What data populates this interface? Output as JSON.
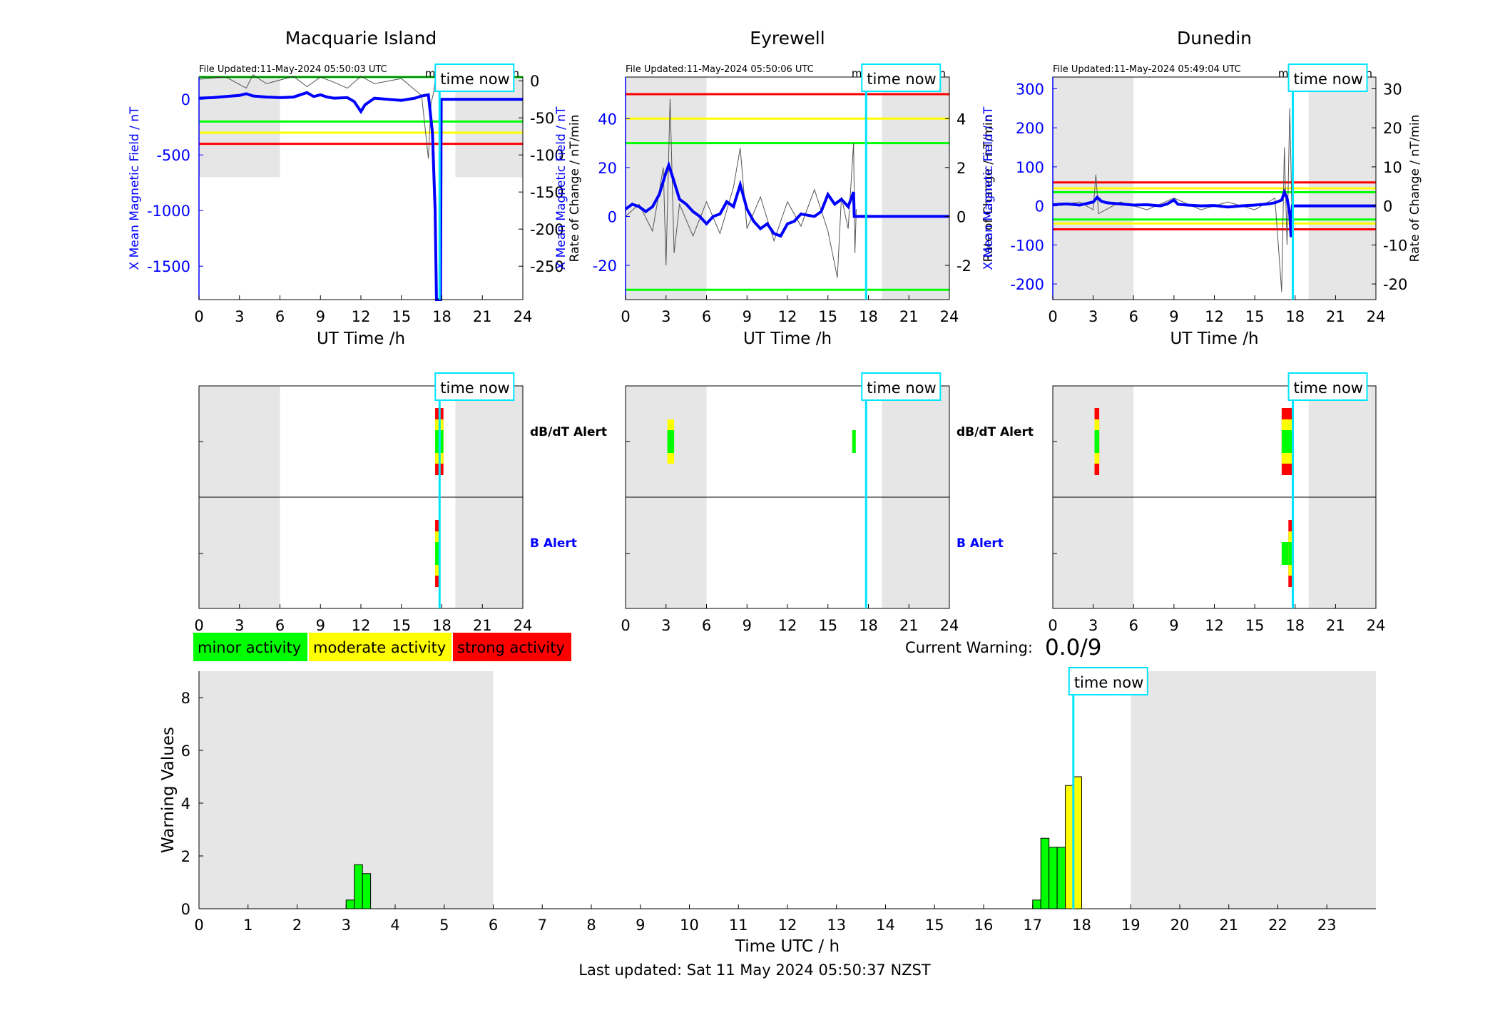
{
  "footer": {
    "last_updated": "Last updated: Sat 11 May 2024 05:50:37 NZST"
  },
  "current_warning": {
    "label": "Current Warning:",
    "value": "0.0/9"
  },
  "legend": [
    {
      "label": "minor activity",
      "color": "#00ff00"
    },
    {
      "label": "moderate activity",
      "color": "#ffff00"
    },
    {
      "label": "strong activity",
      "color": "#ff0000"
    }
  ],
  "alert_labels": {
    "dbdt": "dB/dT Alert",
    "b": "B Alert"
  },
  "colors": {
    "blue": "#0000ff",
    "cyan": "#00e5ff",
    "shade": "#e6e6e6",
    "green": "#00ff00",
    "yellow": "#ffff00",
    "red": "#ff0000"
  },
  "chart_data": [
    {
      "id": "macquarie",
      "type": "line",
      "title": "Macquarie Island",
      "file_updated": "File Updated:11-May-2024 05:50:03 UTC",
      "resolution": "minute resolution",
      "time_now_label": "time now",
      "time_now": 17.83,
      "xlabel": "UT Time /h",
      "ylabel_left": "X Mean Magnetic Field / nT",
      "ylabel_right": "Rate of Change / nT/min",
      "xlim": [
        0,
        24
      ],
      "xticks": [
        0,
        3,
        6,
        9,
        12,
        15,
        18,
        21,
        24
      ],
      "ylim_left": [
        -1800,
        200
      ],
      "yticks_left": [
        -1500,
        -1000,
        -500,
        0
      ],
      "ylim_right": [
        -295,
        5
      ],
      "yticks_right": [
        -250,
        -200,
        -150,
        -100,
        -50,
        0
      ],
      "thresholds_left": [
        {
          "value": 200,
          "color": "green"
        },
        {
          "value": -200,
          "color": "green"
        },
        {
          "value": -300,
          "color": "yellow"
        },
        {
          "value": -400,
          "color": "red"
        }
      ],
      "night_shading": [
        [
          0,
          6
        ],
        [
          19,
          24
        ]
      ],
      "field_series": [
        [
          0,
          10
        ],
        [
          1,
          15
        ],
        [
          2,
          25
        ],
        [
          3,
          35
        ],
        [
          3.5,
          50
        ],
        [
          4,
          30
        ],
        [
          5,
          20
        ],
        [
          6,
          15
        ],
        [
          7,
          20
        ],
        [
          7.5,
          40
        ],
        [
          8,
          60
        ],
        [
          8.5,
          25
        ],
        [
          9,
          40
        ],
        [
          9.5,
          20
        ],
        [
          10,
          10
        ],
        [
          11,
          15
        ],
        [
          11.5,
          -20
        ],
        [
          12,
          -110
        ],
        [
          12.3,
          -50
        ],
        [
          13,
          10
        ],
        [
          14,
          0
        ],
        [
          15,
          -10
        ],
        [
          16,
          10
        ],
        [
          16.5,
          30
        ],
        [
          17,
          40
        ],
        [
          17.3,
          -300
        ],
        [
          17.5,
          -1000
        ],
        [
          17.6,
          -1800
        ],
        [
          17.9,
          -1800
        ],
        [
          17.95,
          0
        ],
        [
          24,
          0
        ]
      ],
      "rate_series": [
        [
          0,
          2
        ],
        [
          2,
          5
        ],
        [
          3.5,
          -10
        ],
        [
          4,
          8
        ],
        [
          5,
          -4
        ],
        [
          7,
          6
        ],
        [
          8,
          -8
        ],
        [
          9,
          5
        ],
        [
          10,
          -2
        ],
        [
          11,
          -10
        ],
        [
          12,
          6
        ],
        [
          13,
          -4
        ],
        [
          15,
          3
        ],
        [
          16.5,
          -20
        ],
        [
          17,
          -105
        ],
        [
          17.2,
          -30
        ],
        [
          17.4,
          -15
        ],
        [
          17.5,
          0
        ]
      ]
    },
    {
      "id": "eyrewell",
      "type": "line",
      "title": "Eyrewell",
      "file_updated": "File Updated:11-May-2024 05:50:06 UTC",
      "resolution": "minute resolution",
      "time_now_label": "time now",
      "time_now": 17.83,
      "xlabel": "UT Time /h",
      "ylabel_left": "X Mean Magnetic Field / nT",
      "ylabel_right": "Rate of Change / nT/min",
      "xlim": [
        0,
        24
      ],
      "xticks": [
        0,
        3,
        6,
        9,
        12,
        15,
        18,
        21,
        24
      ],
      "ylim_left": [
        -34,
        57
      ],
      "yticks_left": [
        -20,
        0,
        20,
        40
      ],
      "ylim_right": [
        -3.4,
        5.7
      ],
      "yticks_right": [
        -2,
        0,
        2,
        4
      ],
      "thresholds_left": [
        {
          "value": 50,
          "color": "red"
        },
        {
          "value": 40,
          "color": "yellow"
        },
        {
          "value": 30,
          "color": "green"
        },
        {
          "value": -30,
          "color": "green"
        }
      ],
      "night_shading": [
        [
          0,
          6
        ],
        [
          19,
          24
        ]
      ],
      "field_series": [
        [
          0,
          3
        ],
        [
          0.5,
          5
        ],
        [
          1,
          4
        ],
        [
          1.5,
          2
        ],
        [
          2,
          4
        ],
        [
          2.5,
          9
        ],
        [
          3,
          18
        ],
        [
          3.2,
          21
        ],
        [
          3.5,
          16
        ],
        [
          4,
          7
        ],
        [
          4.5,
          5
        ],
        [
          5,
          2
        ],
        [
          5.5,
          0
        ],
        [
          6,
          -3
        ],
        [
          6.5,
          0
        ],
        [
          7,
          1
        ],
        [
          7.5,
          6
        ],
        [
          8,
          4
        ],
        [
          8.5,
          13
        ],
        [
          9,
          3
        ],
        [
          9.5,
          -2
        ],
        [
          10,
          -5
        ],
        [
          10.5,
          -3
        ],
        [
          11,
          -7
        ],
        [
          11.5,
          -8
        ],
        [
          12,
          -3
        ],
        [
          12.5,
          -2
        ],
        [
          13,
          1
        ],
        [
          14,
          0
        ],
        [
          14.5,
          2
        ],
        [
          15,
          9
        ],
        [
          15.5,
          5
        ],
        [
          16,
          7
        ],
        [
          16.5,
          4
        ],
        [
          16.9,
          10
        ],
        [
          16.95,
          0
        ],
        [
          24,
          0
        ]
      ],
      "rate_series": [
        [
          0,
          0
        ],
        [
          1,
          0.5
        ],
        [
          2,
          -0.6
        ],
        [
          2.8,
          2
        ],
        [
          3,
          -2
        ],
        [
          3.3,
          4.8
        ],
        [
          3.6,
          -1.5
        ],
        [
          4,
          0.5
        ],
        [
          5,
          -0.8
        ],
        [
          6,
          0.6
        ],
        [
          7,
          -0.7
        ],
        [
          8,
          1.2
        ],
        [
          8.5,
          2.8
        ],
        [
          9,
          -0.5
        ],
        [
          10,
          0.8
        ],
        [
          11,
          -1
        ],
        [
          12,
          0.6
        ],
        [
          13,
          -0.4
        ],
        [
          14,
          1.1
        ],
        [
          15,
          -0.6
        ],
        [
          15.7,
          -2.5
        ],
        [
          16,
          0.8
        ],
        [
          16.5,
          -0.5
        ],
        [
          16.9,
          3
        ],
        [
          17,
          -1.5
        ],
        [
          17.1,
          0.3
        ]
      ]
    },
    {
      "id": "dunedin",
      "type": "line",
      "title": "Dunedin",
      "file_updated": "File Updated:11-May-2024 05:49:04 UTC",
      "resolution": "minute resolution",
      "time_now_label": "time now",
      "time_now": 17.83,
      "xlabel": "UT Time /h",
      "ylabel_left": "X Mean Magnetic Field / nT",
      "ylabel_right": "Rate of Change / nT/min",
      "xlim": [
        0,
        24
      ],
      "xticks": [
        0,
        3,
        6,
        9,
        12,
        15,
        18,
        21,
        24
      ],
      "ylim_left": [
        -240,
        330
      ],
      "yticks_left": [
        -200,
        -100,
        0,
        100,
        200,
        300
      ],
      "ylim_right": [
        -24,
        33
      ],
      "yticks_right": [
        -20,
        -10,
        0,
        10,
        20,
        30
      ],
      "thresholds_left": [
        {
          "value": 60,
          "color": "red"
        },
        {
          "value": 45,
          "color": "yellow"
        },
        {
          "value": 35,
          "color": "green"
        },
        {
          "value": -35,
          "color": "green"
        },
        {
          "value": -45,
          "color": "yellow"
        },
        {
          "value": -60,
          "color": "red"
        }
      ],
      "night_shading": [
        [
          0,
          6
        ],
        [
          19,
          24
        ]
      ],
      "field_series": [
        [
          0,
          3
        ],
        [
          1,
          5
        ],
        [
          2,
          2
        ],
        [
          3,
          10
        ],
        [
          3.3,
          22
        ],
        [
          3.6,
          12
        ],
        [
          4,
          8
        ],
        [
          5,
          5
        ],
        [
          6,
          2
        ],
        [
          7,
          3
        ],
        [
          8,
          0
        ],
        [
          8.5,
          5
        ],
        [
          9,
          15
        ],
        [
          9.3,
          4
        ],
        [
          10,
          2
        ],
        [
          11,
          0
        ],
        [
          12,
          1
        ],
        [
          13,
          -3
        ],
        [
          14,
          0
        ],
        [
          15,
          2
        ],
        [
          16,
          5
        ],
        [
          16.5,
          8
        ],
        [
          17,
          15
        ],
        [
          17.2,
          35
        ],
        [
          17.4,
          20
        ],
        [
          17.6,
          -20
        ],
        [
          17.7,
          -80
        ],
        [
          17.75,
          -40
        ],
        [
          17.8,
          0
        ],
        [
          24,
          0
        ]
      ],
      "rate_series": [
        [
          0,
          0
        ],
        [
          2,
          1
        ],
        [
          3,
          -1
        ],
        [
          3.2,
          8
        ],
        [
          3.4,
          -2
        ],
        [
          5,
          1
        ],
        [
          7,
          -1
        ],
        [
          9,
          2
        ],
        [
          11,
          -1
        ],
        [
          13,
          1
        ],
        [
          15,
          -1
        ],
        [
          16.5,
          2
        ],
        [
          17,
          -22
        ],
        [
          17.2,
          15
        ],
        [
          17.4,
          -10
        ],
        [
          17.6,
          25
        ],
        [
          17.8,
          -8
        ]
      ]
    },
    {
      "id": "macquarie-alerts",
      "type": "bar",
      "xticks": [
        0,
        3,
        6,
        9,
        12,
        15,
        18,
        21,
        24
      ],
      "xlim": [
        0,
        24
      ],
      "time_now": 17.83,
      "time_now_label": "time now",
      "night_shading": [
        [
          0,
          6
        ],
        [
          19,
          24
        ]
      ],
      "dbdt": [
        {
          "x": 17.5,
          "w": 0.3,
          "level": 3
        },
        {
          "x": 17.85,
          "w": 0.15,
          "level": 3
        }
      ],
      "b": [
        {
          "x": 17.5,
          "w": 0.35,
          "level": 3
        }
      ]
    },
    {
      "id": "eyrewell-alerts",
      "type": "bar",
      "xticks": [
        0,
        3,
        6,
        9,
        12,
        15,
        18,
        21,
        24
      ],
      "xlim": [
        0,
        24
      ],
      "time_now": 17.83,
      "time_now_label": "time now",
      "night_shading": [
        [
          0,
          6
        ],
        [
          19,
          24
        ]
      ],
      "dbdt": [
        {
          "x": 3.1,
          "w": 0.5,
          "level": 2
        },
        {
          "x": 16.8,
          "w": 0.25,
          "level": 1
        }
      ],
      "b": []
    },
    {
      "id": "dunedin-alerts",
      "type": "bar",
      "xticks": [
        0,
        3,
        6,
        9,
        12,
        15,
        18,
        21,
        24
      ],
      "xlim": [
        0,
        24
      ],
      "time_now": 17.83,
      "time_now_label": "time now",
      "night_shading": [
        [
          0,
          6
        ],
        [
          19,
          24
        ]
      ],
      "dbdt": [
        {
          "x": 3.1,
          "w": 0.35,
          "level": 3
        },
        {
          "x": 17.0,
          "w": 0.85,
          "level": 3
        }
      ],
      "b": [
        {
          "x": 17.0,
          "w": 0.5,
          "level": 1
        },
        {
          "x": 17.5,
          "w": 0.4,
          "level": 3
        }
      ]
    },
    {
      "id": "warning-bars",
      "type": "bar",
      "xlabel": "Time UTC / h",
      "ylabel": "Warning Values",
      "xlim": [
        0,
        24
      ],
      "xticks": [
        0,
        1,
        2,
        3,
        4,
        5,
        6,
        7,
        8,
        9,
        10,
        11,
        12,
        13,
        14,
        15,
        16,
        17,
        18,
        19,
        20,
        21,
        22,
        23
      ],
      "ylim": [
        0,
        9
      ],
      "yticks": [
        0,
        2,
        4,
        6,
        8
      ],
      "time_now": 17.83,
      "time_now_label": "time now",
      "night_shading": [
        [
          0,
          6
        ],
        [
          19,
          24
        ]
      ],
      "bar_width": 0.1667,
      "bars": [
        {
          "x": 3.0,
          "value": 0.33,
          "color": "green"
        },
        {
          "x": 3.167,
          "value": 1.67,
          "color": "green"
        },
        {
          "x": 3.333,
          "value": 1.33,
          "color": "green"
        },
        {
          "x": 17.0,
          "value": 0.33,
          "color": "green"
        },
        {
          "x": 17.167,
          "value": 2.67,
          "color": "green"
        },
        {
          "x": 17.333,
          "value": 2.33,
          "color": "green"
        },
        {
          "x": 17.5,
          "value": 2.33,
          "color": "green"
        },
        {
          "x": 17.667,
          "value": 4.67,
          "color": "yellow"
        },
        {
          "x": 17.833,
          "value": 5.0,
          "color": "yellow"
        }
      ]
    }
  ]
}
